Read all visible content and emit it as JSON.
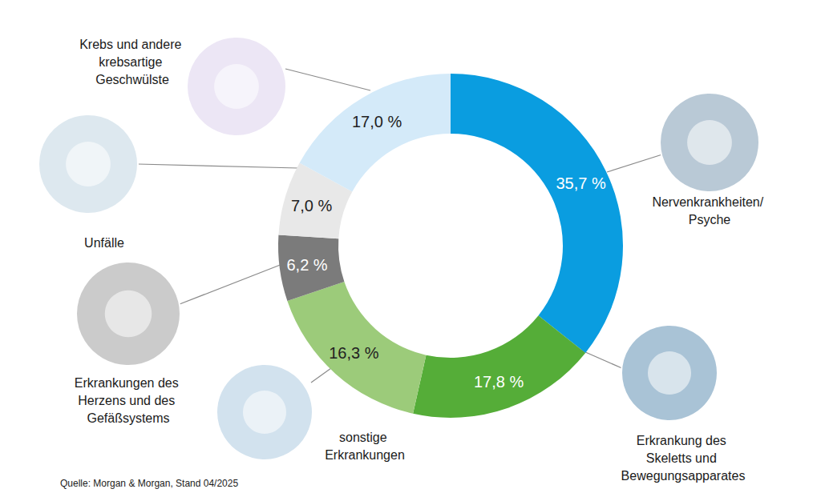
{
  "chart_data": {
    "type": "donut",
    "categories": [
      "Nervenkrankheiten/ Psyche",
      "Erkrankung des Skeletts und Bewegungsapparates",
      "sonstige Erkrankungen",
      "Erkrankungen des Herzens und des Gefäßsystems",
      "Unfälle",
      "Krebs und andere krebsartige Geschwülste"
    ],
    "values": [
      35.7,
      17.8,
      16.3,
      6.2,
      7.0,
      17.0
    ],
    "value_labels": [
      "35,7 %",
      "17,8 %",
      "16,3 %",
      "6,2 %",
      "7,0 %",
      "17,0 %"
    ],
    "colors": [
      "#0a9de0",
      "#55ad38",
      "#9ccb7a",
      "#7b7b7b",
      "#e8e8e8",
      "#d4eaf9"
    ],
    "data_labels": true,
    "source": "Quelle: Morgan & Morgan, Stand 04/2025"
  }
}
